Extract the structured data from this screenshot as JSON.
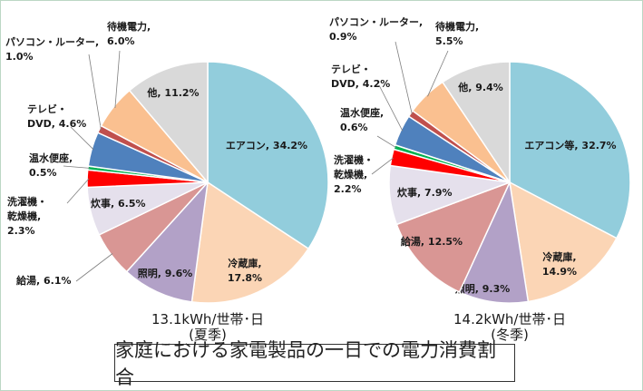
{
  "chart_data": [
    {
      "type": "pie",
      "title": "13.1kWh/世帯･日",
      "subtitle": "(夏季)",
      "slices": [
        {
          "name": "エアコン",
          "value": 34.2,
          "color": "#92cddc",
          "label": "エアコン, 34.2%"
        },
        {
          "name": "冷蔵庫",
          "value": 17.8,
          "color": "#fbd5b5",
          "label": [
            "冷蔵庫,",
            "17.8%"
          ]
        },
        {
          "name": "照明",
          "value": 9.6,
          "color": "#b2a1c7",
          "label": "照明, 9.6%"
        },
        {
          "name": "給湯",
          "value": 6.1,
          "color": "#d99694",
          "label": "給湯, 6.1%"
        },
        {
          "name": "炊事",
          "value": 6.5,
          "color": "#e5e0ec",
          "label": "炊事, 6.5%"
        },
        {
          "name": "洗濯機・乾燥機",
          "value": 2.3,
          "color": "#ff0000",
          "label": [
            "洗濯機・",
            "乾燥機,",
            "2.3%"
          ]
        },
        {
          "name": "温水便座",
          "value": 0.5,
          "color": "#00b050",
          "label": [
            "温水便座,",
            "0.5%"
          ]
        },
        {
          "name": "テレビ・DVD",
          "value": 4.6,
          "color": "#4f81bd",
          "label": [
            "テレビ・",
            "DVD, 4.6%"
          ]
        },
        {
          "name": "パソコン・ルーター",
          "value": 1.0,
          "color": "#c0504d",
          "label": [
            "パソコン・ルーター,",
            "1.0%"
          ]
        },
        {
          "name": "待機電力",
          "value": 6.0,
          "color": "#fac090",
          "label": [
            "待機電力,",
            "6.0%"
          ]
        },
        {
          "name": "他",
          "value": 11.2,
          "color": "#d9d9d9",
          "label": "他, 11.2%"
        }
      ]
    },
    {
      "type": "pie",
      "title": "14.2kWh/世帯･日",
      "subtitle": "(冬季)",
      "slices": [
        {
          "name": "エアコン等",
          "value": 32.7,
          "color": "#92cddc",
          "label": "エアコン等, 32.7%"
        },
        {
          "name": "冷蔵庫",
          "value": 14.9,
          "color": "#fbd5b5",
          "label": [
            "冷蔵庫,",
            "14.9%"
          ]
        },
        {
          "name": "照明",
          "value": 9.3,
          "color": "#b2a1c7",
          "label": "照明, 9.3%"
        },
        {
          "name": "給湯",
          "value": 12.5,
          "color": "#d99694",
          "label": "給湯, 12.5%"
        },
        {
          "name": "炊事",
          "value": 7.9,
          "color": "#e5e0ec",
          "label": "炊事, 7.9%"
        },
        {
          "name": "洗濯機・乾燥機",
          "value": 2.2,
          "color": "#ff0000",
          "label": [
            "洗濯機・",
            "乾燥機,",
            "2.2%"
          ]
        },
        {
          "name": "温水便座",
          "value": 0.6,
          "color": "#00b050",
          "label": [
            "温水便座,",
            "0.6%"
          ]
        },
        {
          "name": "テレビ・DVD",
          "value": 4.2,
          "color": "#4f81bd",
          "label": [
            "テレビ・",
            "DVD, 4.2%"
          ]
        },
        {
          "name": "パソコン・ルーター",
          "value": 0.9,
          "color": "#c0504d",
          "label": [
            "パソコン・ルーター,",
            "0.9%"
          ]
        },
        {
          "name": "待機電力",
          "value": 5.5,
          "color": "#fac090",
          "label": [
            "待機電力,",
            "5.5%"
          ]
        },
        {
          "name": "他",
          "value": 9.4,
          "color": "#d9d9d9",
          "label": "他, 9.4%"
        }
      ]
    }
  ],
  "caption": "家庭における家電製品の一日での電力消費割合"
}
